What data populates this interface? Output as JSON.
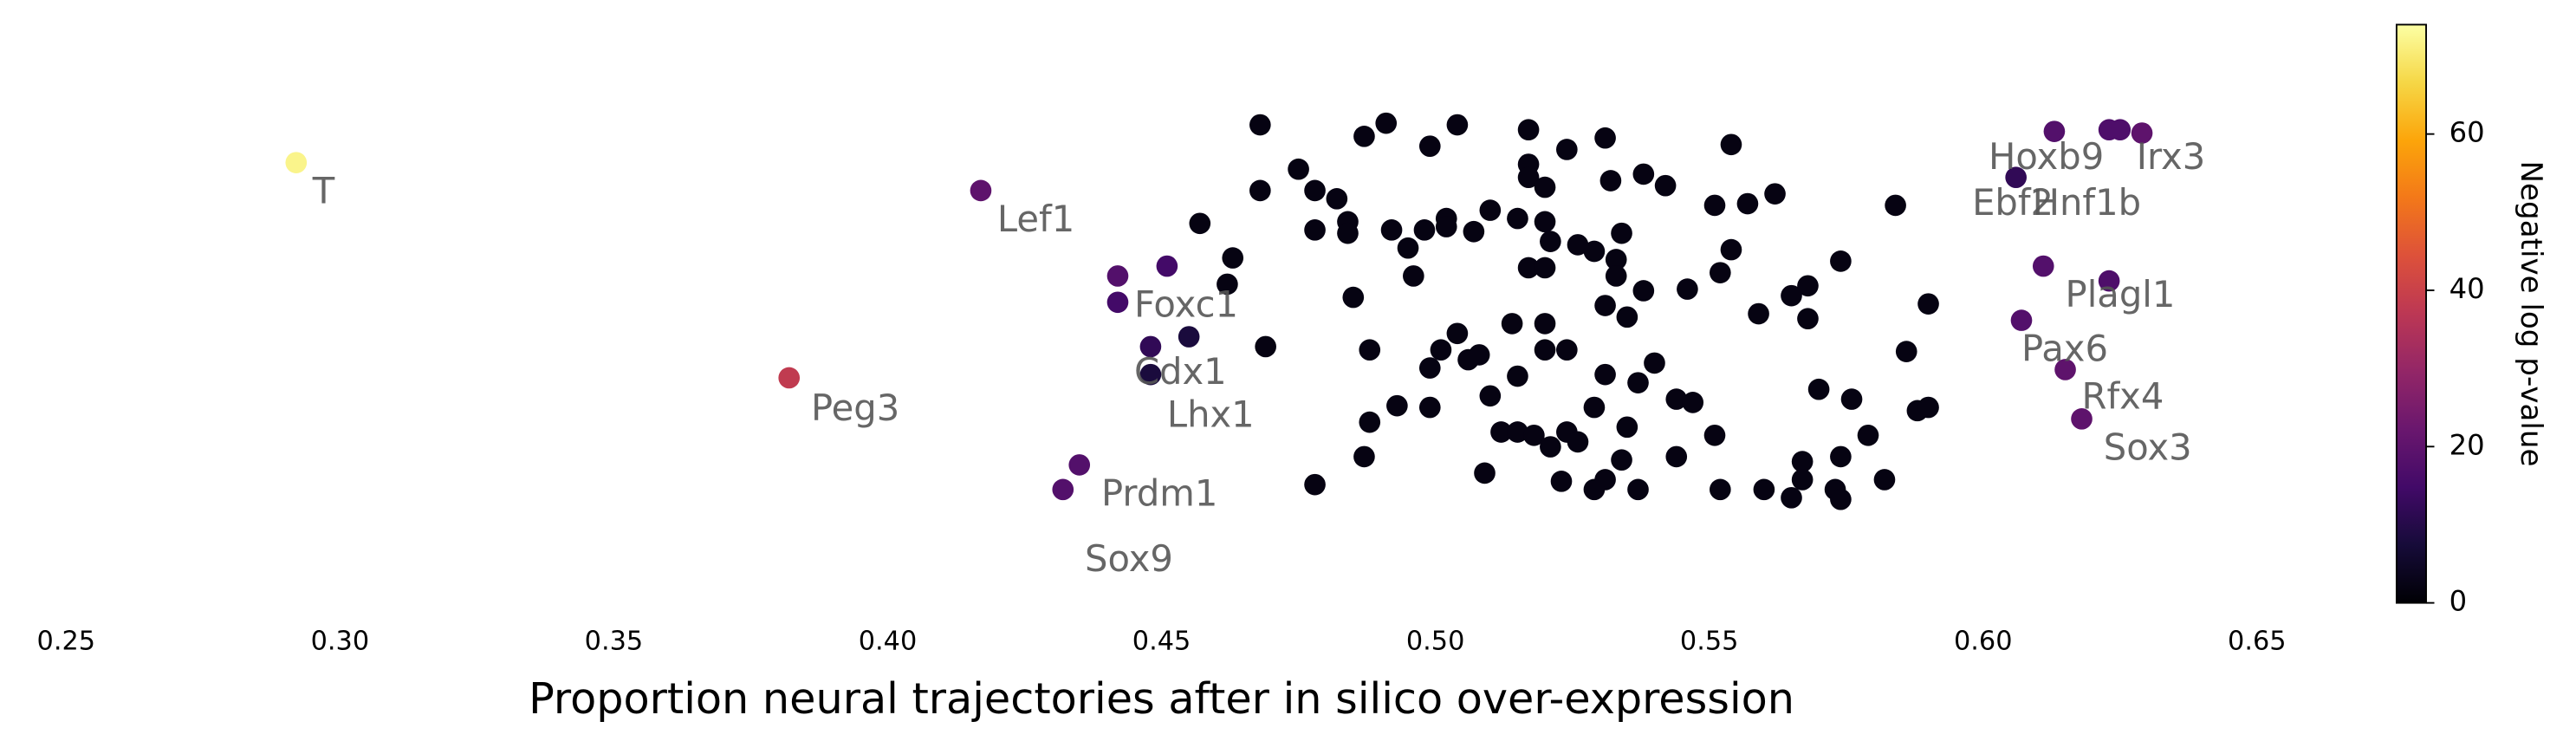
{
  "chart_data": {
    "type": "scatter",
    "x_label": "Proportion neural trajectories after in silico over-expression",
    "xlim": [
      0.25,
      0.65
    ],
    "xticks": [
      {
        "value": 0.25,
        "label": "0.25"
      },
      {
        "value": 0.3,
        "label": "0.30"
      },
      {
        "value": 0.35,
        "label": "0.35"
      },
      {
        "value": 0.4,
        "label": "0.40"
      },
      {
        "value": 0.45,
        "label": "0.45"
      },
      {
        "value": 0.5,
        "label": "0.50"
      },
      {
        "value": 0.55,
        "label": "0.55"
      },
      {
        "value": 0.6,
        "label": "0.60"
      },
      {
        "value": 0.65,
        "label": "0.65"
      }
    ],
    "ylim": [
      0,
      350
    ],
    "grid": false,
    "colormap": "inferno",
    "colorbar": {
      "label": "Negative log p-value",
      "lim": [
        0,
        74
      ],
      "ticks": [
        0,
        20,
        40,
        60
      ]
    },
    "series": [
      {
        "x": [
          0.292,
          0.417,
          0.382,
          0.442,
          0.448,
          0.448,
          0.435,
          0.432,
          0.613,
          0.629,
          0.606,
          0.623,
          0.623,
          0.607,
          0.615,
          0.618,
          0.442,
          0.451,
          0.611,
          0.625,
          0.455,
          0.468,
          0.487,
          0.491,
          0.504,
          0.517,
          0.531,
          0.499,
          0.524,
          0.554,
          0.475,
          0.468,
          0.478,
          0.482,
          0.517,
          0.517,
          0.52,
          0.532,
          0.538,
          0.542,
          0.562,
          0.557,
          0.551,
          0.584,
          0.457,
          0.478,
          0.484,
          0.484,
          0.492,
          0.498,
          0.502,
          0.502,
          0.507,
          0.51,
          0.515,
          0.52,
          0.521,
          0.526,
          0.534,
          0.529,
          0.533,
          0.554,
          0.495,
          0.517,
          0.52,
          0.533,
          0.552,
          0.574,
          0.496,
          0.463,
          0.462,
          0.485,
          0.531,
          0.538,
          0.546,
          0.559,
          0.565,
          0.568,
          0.568,
          0.59,
          0.504,
          0.514,
          0.52,
          0.52,
          0.524,
          0.535,
          0.488,
          0.501,
          0.499,
          0.506,
          0.508,
          0.515,
          0.531,
          0.54,
          0.537,
          0.469,
          0.586,
          0.51,
          0.493,
          0.499,
          0.529,
          0.544,
          0.547,
          0.57,
          0.576,
          0.588,
          0.59,
          0.488,
          0.512,
          0.515,
          0.518,
          0.521,
          0.524,
          0.526,
          0.535,
          0.551,
          0.579,
          0.487,
          0.509,
          0.523,
          0.531,
          0.534,
          0.544,
          0.567,
          0.574,
          0.478,
          0.529,
          0.537,
          0.552,
          0.56,
          0.565,
          0.567,
          0.573,
          0.574,
          0.582
        ],
        "y": [
          266,
          249,
          135,
          197,
          154,
          137,
          82,
          67,
          285,
          284,
          257,
          286,
          194,
          170,
          140,
          110,
          181,
          203,
          203,
          286,
          160,
          289,
          282,
          290,
          289,
          286,
          281,
          276,
          274,
          277,
          262,
          249,
          249,
          244,
          265,
          257,
          251,
          255,
          259,
          252,
          247,
          241,
          240,
          240,
          229,
          225,
          230,
          223,
          225,
          225,
          232,
          227,
          224,
          237,
          232,
          230,
          218,
          216,
          223,
          212,
          207,
          213,
          214,
          202,
          202,
          197,
          199,
          206,
          197,
          208,
          192,
          184,
          179,
          188,
          189,
          174,
          185,
          191,
          171,
          180,
          162,
          168,
          168,
          152,
          152,
          172,
          152,
          152,
          141,
          146,
          149,
          136,
          137,
          144,
          132,
          154,
          151,
          124,
          118,
          117,
          117,
          122,
          120,
          128,
          122,
          115,
          117,
          108,
          102,
          102,
          100,
          93,
          102,
          96,
          105,
          100,
          100,
          87,
          77,
          72,
          73,
          85,
          87,
          84,
          87,
          70,
          67,
          67,
          67,
          67,
          62,
          73,
          67,
          61,
          73
        ],
        "values": [
          72,
          20,
          38,
          18,
          12,
          8,
          18,
          18,
          18,
          20,
          12,
          17,
          17,
          18,
          20,
          20,
          15,
          15,
          18,
          17,
          8,
          2,
          2,
          2,
          2,
          2,
          2,
          2,
          2,
          2,
          2,
          2,
          2,
          2,
          2,
          2,
          2,
          2,
          2,
          2,
          2,
          2,
          2,
          2,
          2,
          2,
          2,
          2,
          2,
          2,
          2,
          2,
          2,
          2,
          2,
          2,
          2,
          2,
          2,
          2,
          2,
          2,
          2,
          2,
          2,
          2,
          2,
          2,
          2,
          2,
          2,
          2,
          2,
          2,
          2,
          2,
          2,
          2,
          2,
          2,
          2,
          2,
          2,
          2,
          2,
          2,
          2,
          2,
          2,
          2,
          2,
          2,
          2,
          2,
          2,
          2,
          2,
          2,
          2,
          2,
          2,
          2,
          2,
          2,
          2,
          2,
          2,
          2,
          2,
          2,
          2,
          2,
          2,
          2,
          2,
          2,
          2,
          2,
          2,
          2,
          2,
          2,
          2,
          2,
          2,
          2,
          2,
          2,
          2,
          2,
          2,
          2,
          2,
          2,
          2
        ]
      }
    ],
    "annotations": [
      {
        "text": "T",
        "x": 0.295,
        "y": 247
      },
      {
        "text": "Lef1",
        "x": 0.42,
        "y": 230
      },
      {
        "text": "Peg3",
        "x": 0.386,
        "y": 115
      },
      {
        "text": "Foxc1",
        "x": 0.445,
        "y": 178
      },
      {
        "text": "Cdx1",
        "x": 0.445,
        "y": 137
      },
      {
        "text": "Lhx1",
        "x": 0.451,
        "y": 111
      },
      {
        "text": "Prdm1",
        "x": 0.439,
        "y": 63
      },
      {
        "text": "Sox9",
        "x": 0.436,
        "y": 23
      },
      {
        "text": "Hoxb9",
        "x": 0.601,
        "y": 268
      },
      {
        "text": "Irx3",
        "x": 0.628,
        "y": 268
      },
      {
        "text": "Ebf2",
        "x": 0.598,
        "y": 240
      },
      {
        "text": "Hnf1b",
        "x": 0.609,
        "y": 240
      },
      {
        "text": "Plagl1",
        "x": 0.615,
        "y": 184
      },
      {
        "text": "Pax6",
        "x": 0.607,
        "y": 151
      },
      {
        "text": "Rfx4",
        "x": 0.618,
        "y": 122
      },
      {
        "text": "Sox3",
        "x": 0.622,
        "y": 91
      }
    ]
  }
}
